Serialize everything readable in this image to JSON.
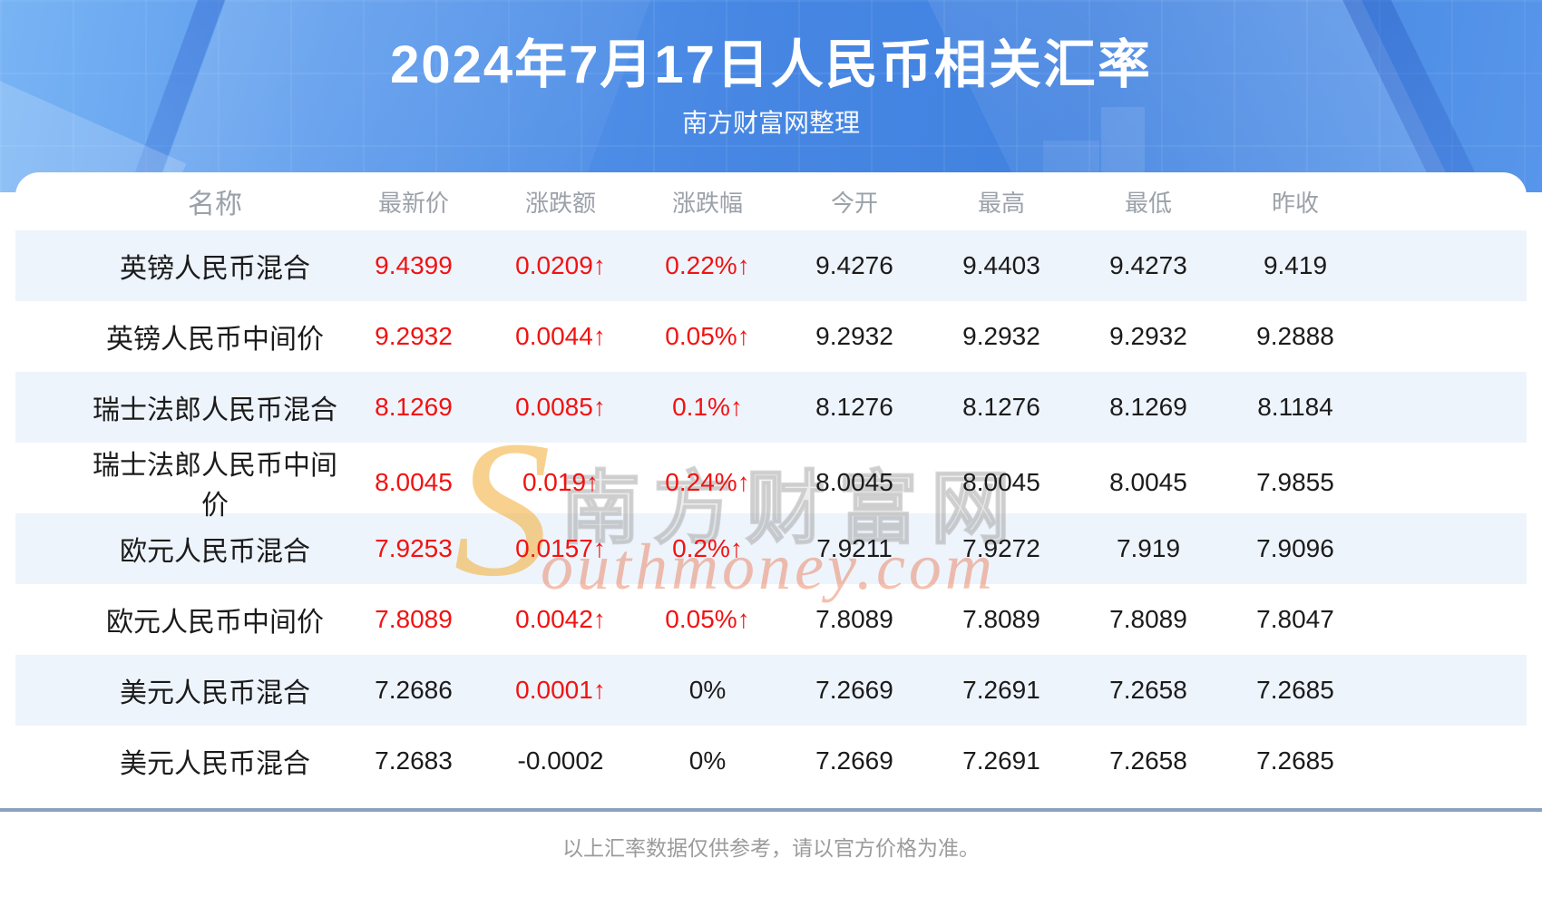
{
  "header": {
    "title": "2024年7月17日人民币相关汇率",
    "subtitle": "南方财富网整理"
  },
  "chart_data": {
    "type": "table",
    "title": "2024年7月17日人民币相关汇率",
    "columns": [
      "名称",
      "最新价",
      "涨跌额",
      "涨跌幅",
      "今开",
      "最高",
      "最低",
      "昨收"
    ],
    "rows": [
      {
        "name": "英镑人民币混合",
        "values": [
          "9.4399",
          "0.0209↑",
          "0.22%↑",
          "9.4276",
          "9.4403",
          "9.4273",
          "9.419"
        ],
        "red": [
          true,
          true,
          true,
          false,
          false,
          false,
          false
        ]
      },
      {
        "name": "英镑人民币中间价",
        "values": [
          "9.2932",
          "0.0044↑",
          "0.05%↑",
          "9.2932",
          "9.2932",
          "9.2932",
          "9.2888"
        ],
        "red": [
          true,
          true,
          true,
          false,
          false,
          false,
          false
        ]
      },
      {
        "name": "瑞士法郎人民币混合",
        "values": [
          "8.1269",
          "0.0085↑",
          "0.1%↑",
          "8.1276",
          "8.1276",
          "8.1269",
          "8.1184"
        ],
        "red": [
          true,
          true,
          true,
          false,
          false,
          false,
          false
        ]
      },
      {
        "name": "瑞士法郎人民币中间价",
        "values": [
          "8.0045",
          "0.019↑",
          "0.24%↑",
          "8.0045",
          "8.0045",
          "8.0045",
          "7.9855"
        ],
        "red": [
          true,
          true,
          true,
          false,
          false,
          false,
          false
        ]
      },
      {
        "name": "欧元人民币混合",
        "values": [
          "7.9253",
          "0.0157↑",
          "0.2%↑",
          "7.9211",
          "7.9272",
          "7.919",
          "7.9096"
        ],
        "red": [
          true,
          true,
          true,
          false,
          false,
          false,
          false
        ]
      },
      {
        "name": "欧元人民币中间价",
        "values": [
          "7.8089",
          "0.0042↑",
          "0.05%↑",
          "7.8089",
          "7.8089",
          "7.8089",
          "7.8047"
        ],
        "red": [
          true,
          true,
          true,
          false,
          false,
          false,
          false
        ]
      },
      {
        "name": "美元人民币混合",
        "values": [
          "7.2686",
          "0.0001↑",
          "0%",
          "7.2669",
          "7.2691",
          "7.2658",
          "7.2685"
        ],
        "red": [
          false,
          true,
          false,
          false,
          false,
          false,
          false
        ]
      },
      {
        "name": "美元人民币混合",
        "values": [
          "7.2683",
          "-0.0002",
          "0%",
          "7.2669",
          "7.2691",
          "7.2658",
          "7.2685"
        ],
        "red": [
          false,
          false,
          false,
          false,
          false,
          false,
          false
        ]
      }
    ]
  },
  "watermark": {
    "s": "S",
    "cn": "南方财富网",
    "en": "outhmoney.com"
  },
  "footer": {
    "note": "以上汇率数据仅供参考，请以官方价格为准。"
  },
  "colors": {
    "banner_blue": "#4787e3",
    "accent_red": "#f21212",
    "row_stripe": "#eef4fc",
    "divider": "#8ba1c0",
    "header_gray": "#9ba1a9"
  }
}
